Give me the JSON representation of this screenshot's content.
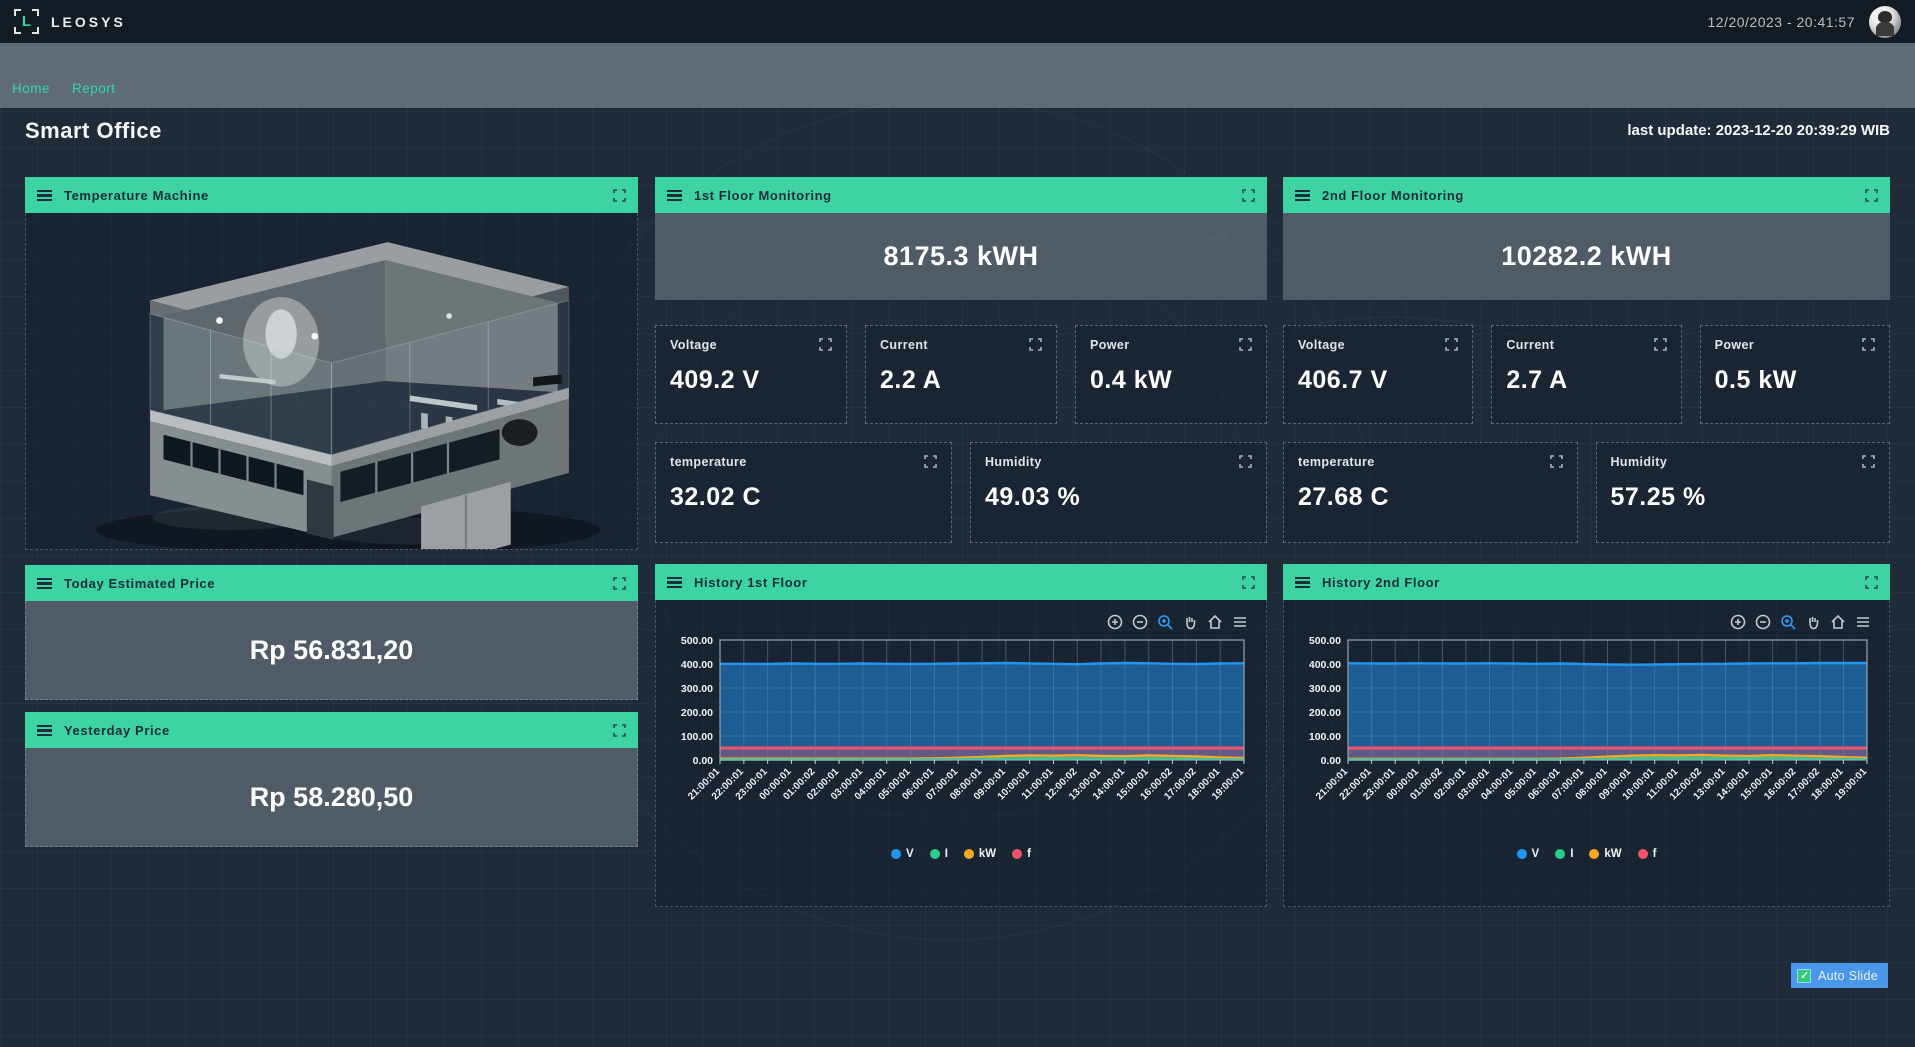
{
  "app": {
    "brand": "LEOSYS",
    "datetime": "12/20/2023 - 20:41:57"
  },
  "nav": {
    "items": [
      {
        "label": "Home"
      },
      {
        "label": "Report"
      }
    ]
  },
  "page": {
    "title": "Smart Office",
    "last_update": "last update: 2023-12-20 20:39:29 WIB"
  },
  "colors": {
    "accent_green": "#3dd3a3",
    "autoslide_blue": "#4a96e8"
  },
  "panels": {
    "temperature_machine": {
      "title": "Temperature Machine"
    },
    "first_floor": {
      "title": "1st Floor Monitoring",
      "energy": "8175.3 kWH",
      "tiles": [
        {
          "label": "Voltage",
          "value": "409.2 V"
        },
        {
          "label": "Current",
          "value": "2.2 A"
        },
        {
          "label": "Power",
          "value": "0.4 kW"
        },
        {
          "label": "temperature",
          "value": "32.02 C"
        },
        {
          "label": "Humidity",
          "value": "49.03 %"
        }
      ]
    },
    "second_floor": {
      "title": "2nd Floor Monitoring",
      "energy": "10282.2 kWH",
      "tiles": [
        {
          "label": "Voltage",
          "value": "406.7 V"
        },
        {
          "label": "Current",
          "value": "2.7 A"
        },
        {
          "label": "Power",
          "value": "0.5 kW"
        },
        {
          "label": "temperature",
          "value": "27.68 C"
        },
        {
          "label": "Humidity",
          "value": "57.25 %"
        }
      ]
    },
    "today_price": {
      "title": "Today Estimated Price",
      "value": "Rp 56.831,20"
    },
    "yesterday_price": {
      "title": "Yesterday Price",
      "value": "Rp 58.280,50"
    },
    "history_first": {
      "title": "History 1st Floor"
    },
    "history_second": {
      "title": "History 2nd Floor"
    }
  },
  "auto_slide": {
    "label": "Auto Slide",
    "checked": true
  },
  "chart_data": [
    {
      "type": "area",
      "title": "History 1st Floor",
      "x": [
        "21:00:01",
        "22:00:01",
        "23:00:01",
        "00:00:01",
        "01:00:02",
        "02:00:01",
        "03:00:01",
        "04:00:01",
        "05:00:01",
        "06:00:01",
        "07:00:01",
        "08:00:01",
        "09:00:01",
        "10:00:01",
        "11:00:01",
        "12:00:02",
        "13:00:01",
        "14:00:01",
        "15:00:01",
        "16:00:02",
        "17:00:02",
        "18:00:01",
        "19:00:01"
      ],
      "series": [
        {
          "name": "V",
          "color": "#2196f3",
          "values": [
            401,
            401,
            400,
            402,
            401,
            401,
            402,
            401,
            400,
            401,
            402,
            403,
            404,
            402,
            401,
            399,
            402,
            404,
            403,
            401,
            400,
            402,
            403
          ]
        },
        {
          "name": "I",
          "color": "#2ecc8e",
          "values": [
            2,
            2,
            2,
            2,
            2,
            2,
            2,
            2,
            2,
            2,
            3,
            5,
            6,
            7,
            7,
            7,
            6,
            6,
            7,
            6,
            5,
            3,
            2
          ]
        },
        {
          "name": "kW",
          "color": "#f7a825",
          "values": [
            6,
            6,
            6,
            6,
            6,
            6,
            6,
            6,
            6,
            7,
            9,
            13,
            17,
            19,
            18,
            20,
            17,
            16,
            19,
            17,
            15,
            11,
            8
          ]
        },
        {
          "name": "f",
          "color": "#f4516c",
          "values": [
            50,
            50,
            50,
            50,
            50,
            50,
            50,
            50,
            50,
            50,
            50,
            50,
            50,
            50,
            50,
            50,
            50,
            50,
            50,
            50,
            50,
            50,
            50
          ]
        }
      ],
      "ylim": [
        0,
        500
      ],
      "yticks": [
        "500.00",
        "400.00",
        "300.00",
        "200.00",
        "100.00",
        "0.00"
      ],
      "grid": true,
      "legend_position": "bottom"
    },
    {
      "type": "area",
      "title": "History 2nd Floor",
      "x": [
        "21:00:01",
        "22:00:01",
        "23:00:01",
        "00:00:01",
        "01:00:02",
        "02:00:01",
        "03:00:01",
        "04:00:01",
        "05:00:01",
        "06:00:01",
        "07:00:01",
        "08:00:01",
        "09:00:01",
        "10:00:01",
        "11:00:01",
        "12:00:02",
        "13:00:01",
        "14:00:01",
        "15:00:01",
        "16:00:02",
        "17:00:02",
        "18:00:01",
        "19:00:01"
      ],
      "series": [
        {
          "name": "V",
          "color": "#2196f3",
          "values": [
            403,
            402,
            402,
            403,
            402,
            402,
            403,
            402,
            401,
            402,
            400,
            398,
            397,
            398,
            399,
            400,
            401,
            402,
            403,
            403,
            404,
            404,
            404
          ]
        },
        {
          "name": "I",
          "color": "#2ecc8e",
          "values": [
            2,
            2,
            2,
            2,
            2,
            2,
            2,
            2,
            2,
            2,
            3,
            5,
            7,
            8,
            8,
            8,
            7,
            7,
            8,
            7,
            5,
            4,
            3
          ]
        },
        {
          "name": "kW",
          "color": "#f7a825",
          "values": [
            5,
            5,
            5,
            5,
            5,
            5,
            5,
            5,
            5,
            6,
            9,
            14,
            18,
            20,
            19,
            21,
            18,
            17,
            20,
            18,
            16,
            12,
            9
          ]
        },
        {
          "name": "f",
          "color": "#f4516c",
          "values": [
            50,
            50,
            50,
            50,
            50,
            50,
            50,
            50,
            50,
            50,
            50,
            50,
            50,
            50,
            50,
            50,
            50,
            50,
            50,
            50,
            50,
            50,
            50
          ]
        }
      ],
      "ylim": [
        0,
        500
      ],
      "yticks": [
        "500.00",
        "400.00",
        "300.00",
        "200.00",
        "100.00",
        "0.00"
      ],
      "grid": true,
      "legend_position": "bottom"
    }
  ]
}
